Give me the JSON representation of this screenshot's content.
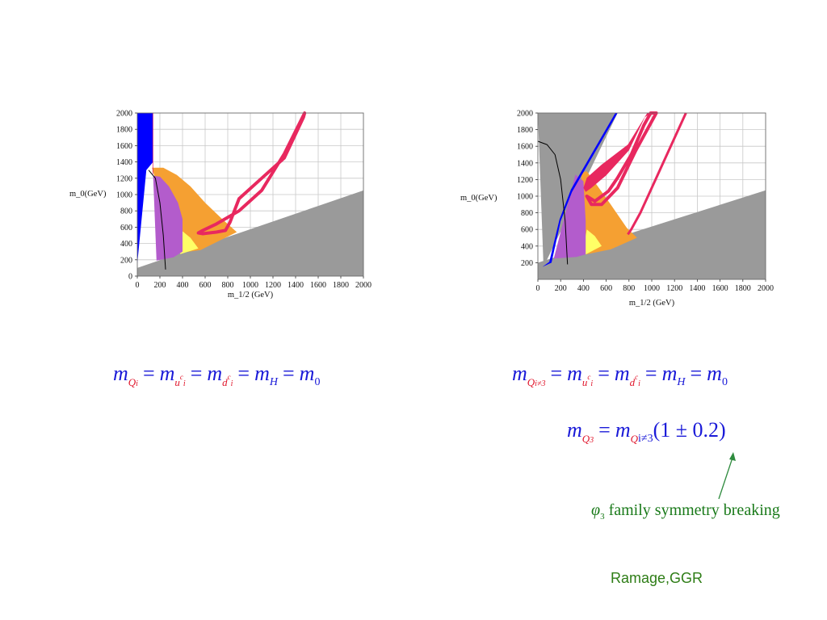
{
  "chart_data": [
    {
      "type": "area",
      "xlabel": "m_1/2 (GeV)",
      "ylabel": "m_0(GeV)",
      "xlim": [
        0,
        2000
      ],
      "ylim": [
        0,
        2000
      ],
      "xticks": [
        0,
        200,
        400,
        600,
        800,
        1000,
        1200,
        1400,
        1600,
        1800,
        2000
      ],
      "yticks": [
        0,
        200,
        400,
        600,
        800,
        1000,
        1200,
        1400,
        1600,
        1800,
        2000
      ],
      "grid": true,
      "regions": [
        {
          "color": "#9a9a9a",
          "points": [
            [
              0,
              100
            ],
            [
              2000,
              1050
            ],
            [
              2000,
              0
            ],
            [
              0,
              0
            ]
          ]
        },
        {
          "color": "#f5a032",
          "points": [
            [
              130,
              1330
            ],
            [
              230,
              1330
            ],
            [
              350,
              1240
            ],
            [
              470,
              1100
            ],
            [
              600,
              900
            ],
            [
              750,
              700
            ],
            [
              880,
              540
            ],
            [
              560,
              320
            ],
            [
              350,
              280
            ]
          ]
        },
        {
          "color": "#ffff66",
          "points": [
            [
              380,
              270
            ],
            [
              540,
              340
            ],
            [
              470,
              470
            ],
            [
              390,
              560
            ],
            [
              370,
              420
            ]
          ]
        },
        {
          "color": "#b35ccc",
          "points": [
            [
              140,
              1230
            ],
            [
              200,
              1220
            ],
            [
              280,
              1100
            ],
            [
              360,
              900
            ],
            [
              400,
              700
            ],
            [
              400,
              300
            ],
            [
              320,
              230
            ],
            [
              170,
              190
            ]
          ]
        },
        {
          "color": "#0000ff",
          "points": [
            [
              0,
              2000
            ],
            [
              140,
              2000
            ],
            [
              140,
              1400
            ],
            [
              110,
              1350
            ],
            [
              80,
              1300
            ],
            [
              0,
              150
            ]
          ]
        },
        {
          "color": "#e0145a",
          "points": [
            [
              135,
              2000
            ],
            [
              140,
              2000
            ],
            [
              140,
              1250
            ],
            [
              135,
              1250
            ]
          ]
        }
      ],
      "curves": [
        {
          "color": "#e8285f",
          "width": 4,
          "closed": true,
          "points": [
            [
              540,
              530
            ],
            [
              580,
              560
            ],
            [
              700,
              640
            ],
            [
              900,
              800
            ],
            [
              1100,
              1050
            ],
            [
              1300,
              1500
            ],
            [
              1480,
              2000
            ],
            [
              1470,
              1950
            ],
            [
              1300,
              1450
            ],
            [
              1100,
              1200
            ],
            [
              900,
              950
            ],
            [
              820,
              660
            ],
            [
              780,
              560
            ],
            [
              700,
              540
            ],
            [
              580,
              520
            ]
          ]
        },
        {
          "color": "#000000",
          "width": 1,
          "closed": false,
          "points": [
            [
              100,
              1300
            ],
            [
              160,
              1200
            ],
            [
              200,
              900
            ],
            [
              230,
              500
            ],
            [
              250,
              80
            ]
          ]
        }
      ]
    },
    {
      "type": "area",
      "xlabel": "m_1/2 (GeV)",
      "ylabel": "m_0(GeV)",
      "xlim": [
        0,
        2000
      ],
      "ylim": [
        0,
        2000
      ],
      "xticks": [
        0,
        200,
        400,
        600,
        800,
        1000,
        1200,
        1400,
        1600,
        1800,
        2000
      ],
      "yticks": [
        200,
        400,
        600,
        800,
        1000,
        1200,
        1400,
        1600,
        1800,
        2000
      ],
      "grid": true,
      "regions": [
        {
          "color": "#9a9a9a",
          "points": [
            [
              0,
              2000
            ],
            [
              700,
              2000
            ],
            [
              50,
              150
            ]
          ]
        },
        {
          "color": "#9a9a9a",
          "points": [
            [
              0,
              200
            ],
            [
              2000,
              1070
            ],
            [
              2000,
              0
            ],
            [
              0,
              0
            ]
          ]
        },
        {
          "color": "#f5a032",
          "points": [
            [
              380,
              1280
            ],
            [
              430,
              1300
            ],
            [
              520,
              1130
            ],
            [
              640,
              900
            ],
            [
              780,
              620
            ],
            [
              870,
              500
            ],
            [
              640,
              360
            ],
            [
              420,
              300
            ],
            [
              400,
              800
            ]
          ]
        },
        {
          "color": "#ffff66",
          "points": [
            [
              420,
              300
            ],
            [
              560,
              400
            ],
            [
              500,
              520
            ],
            [
              430,
              600
            ],
            [
              410,
              450
            ]
          ]
        },
        {
          "color": "#b35ccc",
          "points": [
            [
              330,
              1260
            ],
            [
              400,
              1180
            ],
            [
              420,
              700
            ],
            [
              420,
              300
            ],
            [
              340,
              270
            ],
            [
              140,
              250
            ]
          ]
        },
        {
          "color": "#0000ff",
          "points": [
            [
              40,
              150
            ],
            [
              120,
              200
            ],
            [
              200,
              700
            ],
            [
              300,
              1050
            ],
            [
              700,
              2000
            ],
            [
              680,
              2000
            ],
            [
              290,
              1080
            ],
            [
              190,
              720
            ],
            [
              100,
              210
            ]
          ]
        },
        {
          "color": "#e8285f",
          "points": [
            [
              420,
              1050
            ],
            [
              470,
              1100
            ],
            [
              600,
              1250
            ],
            [
              800,
              1550
            ],
            [
              940,
              1950
            ],
            [
              990,
              2000
            ],
            [
              960,
              2000
            ],
            [
              790,
              1620
            ],
            [
              560,
              1380
            ],
            [
              430,
              1220
            ],
            [
              400,
              1100
            ]
          ]
        }
      ],
      "curves": [
        {
          "color": "#e8285f",
          "width": 4,
          "closed": true,
          "points": [
            [
              430,
              1000
            ],
            [
              500,
              940
            ],
            [
              620,
              1060
            ],
            [
              700,
              1220
            ],
            [
              820,
              1500
            ],
            [
              930,
              1850
            ],
            [
              990,
              2000
            ],
            [
              1040,
              2000
            ],
            [
              860,
              1550
            ],
            [
              700,
              1100
            ],
            [
              560,
              900
            ],
            [
              470,
              900
            ]
          ]
        },
        {
          "color": "#e8285f",
          "width": 3,
          "closed": false,
          "points": [
            [
              790,
              540
            ],
            [
              820,
              600
            ],
            [
              900,
              800
            ],
            [
              1000,
              1100
            ],
            [
              1100,
              1400
            ],
            [
              1300,
              2000
            ]
          ]
        },
        {
          "color": "#000000",
          "width": 1,
          "closed": false,
          "points": [
            [
              0,
              1660
            ],
            [
              80,
              1620
            ],
            [
              150,
              1500
            ],
            [
              200,
              1200
            ],
            [
              240,
              700
            ],
            [
              260,
              180
            ]
          ]
        }
      ]
    }
  ],
  "equations": {
    "left": {
      "m": "m",
      "eq": "=",
      "sub_Q": "Q",
      "sub_Q_i": "i",
      "sub_u": "u",
      "sub_u_i": "i",
      "sub_u_c": "c",
      "sub_d": "d",
      "sub_d_i": "i",
      "sub_d_c": "c",
      "sub_H": "H",
      "sub_0": "0"
    },
    "right1": {
      "m": "m",
      "eq": "=",
      "sub_Q": "Q",
      "sub_Q_ineq3": "i≠3",
      "sub_u": "u",
      "sub_u_i": "i",
      "sub_u_c": "c",
      "sub_d": "d",
      "sub_d_i": "i",
      "sub_d_c": "c",
      "sub_H": "H",
      "sub_0": "0"
    },
    "right2": {
      "m": "m",
      "eq": "=",
      "sub_Q": "Q",
      "sub_Q3": "3",
      "sub_Qi": "Q",
      "sub_ineq3": "i≠3",
      "factor": "(1 ± 0.2)"
    }
  },
  "note": {
    "phi": "φ",
    "phi_sub": "3",
    "text": "family symmetry breaking",
    "arrow_color": "#2e8b3e"
  },
  "credit": "Ramage,GGR"
}
